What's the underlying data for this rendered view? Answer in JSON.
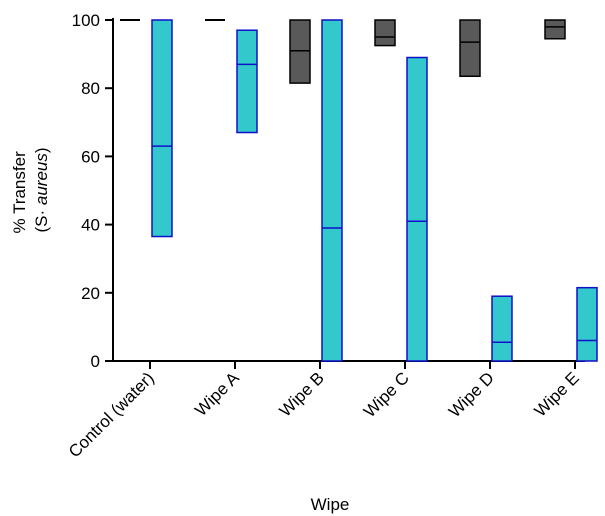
{
  "chart_data": {
    "type": "box",
    "xlabel": "Wipe",
    "ylabel_line1": "% Transfer",
    "ylabel_line2_prefix": "(S· ",
    "ylabel_line2_italic": "aureus",
    "ylabel_line2_suffix": ")",
    "ylim": [
      0,
      100
    ],
    "yticks": [
      0,
      20,
      40,
      60,
      80,
      100
    ],
    "categories": [
      "Control (water)",
      "Wipe A",
      "Wipe B",
      "Wipe C",
      "Wipe D",
      "Wipe E"
    ],
    "series": [
      {
        "color": "#595959",
        "edge": "#000000",
        "boxes": [
          {
            "low": 100,
            "median": 100,
            "high": 100
          },
          {
            "low": 100,
            "median": 100,
            "high": 100
          },
          {
            "low": 81.5,
            "median": 91,
            "high": 100
          },
          {
            "low": 92.5,
            "median": 95,
            "high": 100
          },
          {
            "low": 83.5,
            "median": 93.5,
            "high": 100
          },
          {
            "low": 94.5,
            "median": 98,
            "high": 100
          }
        ]
      },
      {
        "color": "#33C9CC",
        "edge": "#1010C8",
        "boxes": [
          {
            "low": 36.5,
            "median": 63,
            "high": 100
          },
          {
            "low": 67,
            "median": 87,
            "high": 97
          },
          {
            "low": 0,
            "median": 39,
            "high": 100
          },
          {
            "low": 0,
            "median": 41,
            "high": 89
          },
          {
            "low": 0,
            "median": 5.5,
            "high": 19
          },
          {
            "low": 0,
            "median": 6,
            "high": 21.5
          }
        ]
      }
    ]
  }
}
